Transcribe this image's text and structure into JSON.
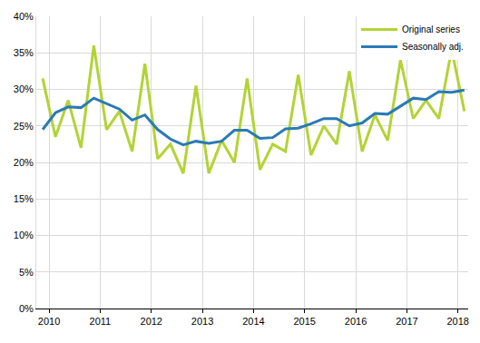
{
  "chart_data": {
    "type": "line",
    "x": [
      2009.875,
      2010.125,
      2010.375,
      2010.625,
      2010.875,
      2011.125,
      2011.375,
      2011.625,
      2011.875,
      2012.125,
      2012.375,
      2012.625,
      2012.875,
      2013.125,
      2013.375,
      2013.625,
      2013.875,
      2014.125,
      2014.375,
      2014.625,
      2014.875,
      2015.125,
      2015.375,
      2015.625,
      2015.875,
      2016.125,
      2016.375,
      2016.625,
      2016.875,
      2017.125,
      2017.375,
      2017.625,
      2017.875,
      2018.125
    ],
    "series": [
      {
        "name": "Original series",
        "color": "#b3d335",
        "values": [
          31.5,
          23.5,
          28.5,
          22,
          36,
          24.5,
          27,
          21.5,
          33.5,
          20.5,
          22.5,
          18.5,
          30.5,
          18.5,
          23,
          20,
          31.5,
          19,
          22.5,
          21.5,
          32,
          21,
          25,
          22.5,
          32.5,
          21.5,
          26.5,
          23,
          34,
          26,
          28.5,
          26,
          35.5,
          27
        ]
      },
      {
        "name": "Seasonally adj.",
        "color": "#2a7ab5",
        "values": [
          24.5,
          26.8,
          27.6,
          27.5,
          28.8,
          28,
          27.3,
          25.8,
          26.5,
          24.5,
          23.2,
          22.4,
          22.9,
          22.6,
          22.9,
          24.4,
          24.4,
          23.3,
          23.4,
          24.6,
          24.7,
          25.3,
          26,
          26,
          25,
          25.4,
          26.7,
          26.6,
          27.7,
          28.8,
          28.6,
          29.7,
          29.6,
          29.9
        ]
      }
    ],
    "xlim": [
      2009.75,
      2018.2
    ],
    "xticks": [
      2010,
      2011,
      2012,
      2013,
      2014,
      2015,
      2016,
      2017,
      2018
    ],
    "ylim": [
      0,
      40
    ],
    "yticks": [
      {
        "value": 0,
        "label": "0%"
      },
      {
        "value": 5,
        "label": "5%"
      },
      {
        "value": 10,
        "label": "10%"
      },
      {
        "value": 15,
        "label": "15%"
      },
      {
        "value": 20,
        "label": "20%"
      },
      {
        "value": 25,
        "label": "25%"
      },
      {
        "value": 30,
        "label": "30%"
      },
      {
        "value": 35,
        "label": "35%"
      },
      {
        "value": 40,
        "label": "40%"
      }
    ],
    "grid": true,
    "legend": "top right"
  }
}
